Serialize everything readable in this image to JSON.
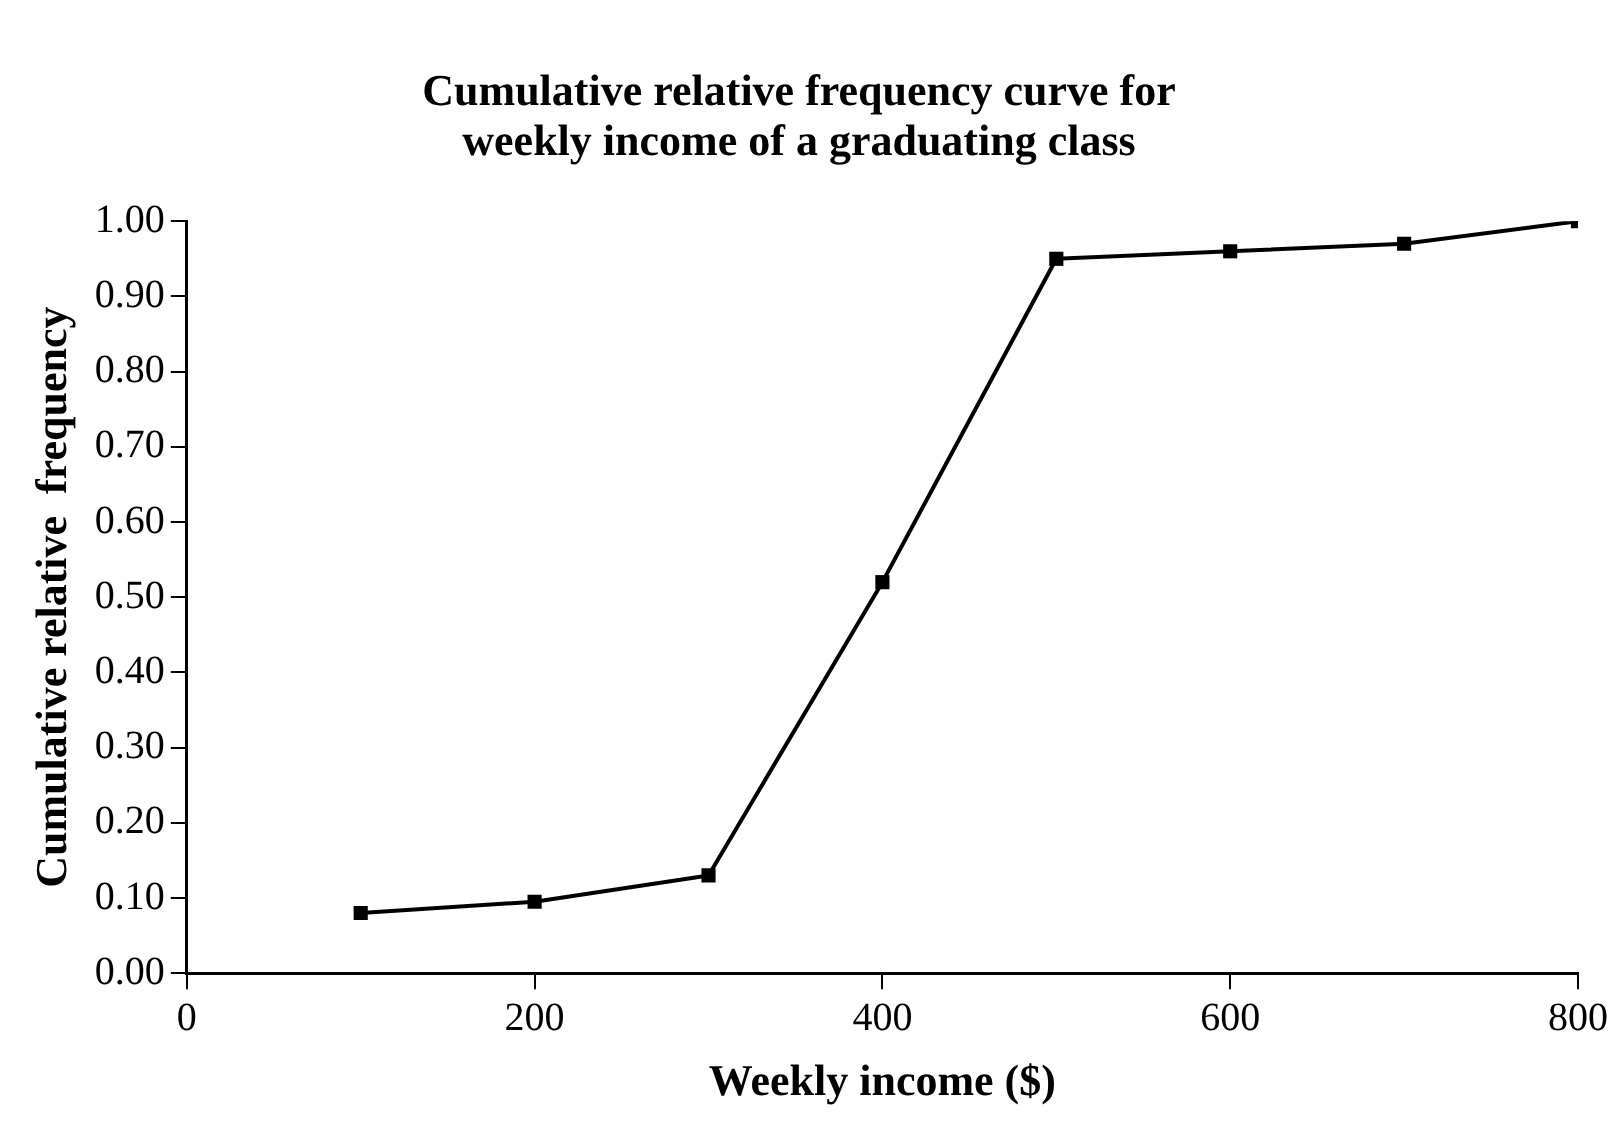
{
  "chart_data": {
    "type": "line",
    "title": [
      "Cumulative relative frequency curve for",
      "weekly income of a graduating class"
    ],
    "xlabel": "Weekly income ($)",
    "ylabel": "Cumulative relative  frequency",
    "x": [
      100,
      200,
      300,
      400,
      500,
      600,
      700,
      800
    ],
    "series": [
      {
        "color": "#000000",
        "values": [
          0.08,
          0.095,
          0.13,
          0.52,
          0.95,
          0.96,
          0.97,
          1.0
        ]
      }
    ],
    "xlim": [
      0,
      800
    ],
    "xticks": [
      0,
      200,
      400,
      600,
      800
    ],
    "ylim": [
      0,
      1
    ],
    "yticks": [
      {
        "value": 0,
        "label": "0.00"
      },
      {
        "value": 0.1,
        "label": "0.10"
      },
      {
        "value": 0.2,
        "label": "0.20"
      },
      {
        "value": 0.3,
        "label": "0.30"
      },
      {
        "value": 0.4,
        "label": "0.40"
      },
      {
        "value": 0.5,
        "label": "0.50"
      },
      {
        "value": 0.6,
        "label": "0.60"
      },
      {
        "value": 0.7,
        "label": "0.70"
      },
      {
        "value": 0.8,
        "label": "0.80"
      },
      {
        "value": 0.9,
        "label": "0.90"
      },
      {
        "value": 1,
        "label": "1.00"
      }
    ],
    "grid": false,
    "legend": false,
    "marker": "square",
    "line_style": "solid"
  }
}
